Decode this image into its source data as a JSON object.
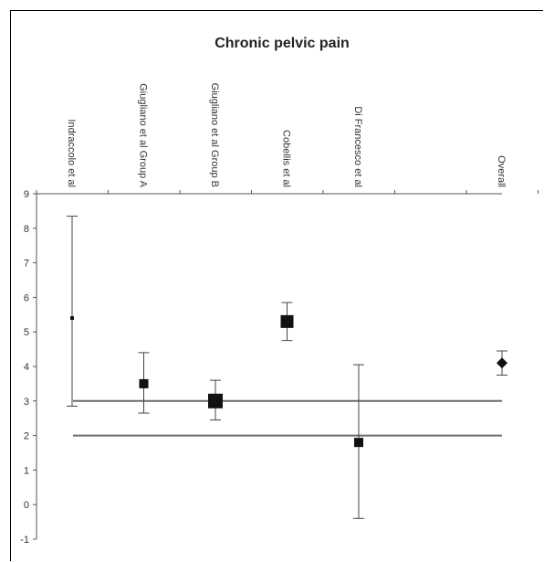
{
  "chart_data": {
    "type": "scatter",
    "title": "Chronic pelvic pain",
    "xlabel": "",
    "ylabel": "",
    "ylim": [
      -1,
      9
    ],
    "yticks": [
      -1,
      0,
      1,
      2,
      3,
      4,
      5,
      6,
      7,
      8,
      9
    ],
    "categories": [
      "Indraccolo et al",
      "Giugliano et al Group A",
      "Giugliano et al Group B",
      "Cobellis et al",
      "Di Francesco et al",
      "Overall"
    ],
    "points": [
      {
        "category": "Indraccolo et al",
        "value": 5.4,
        "lower": 2.85,
        "upper": 8.35,
        "marker": "square",
        "weight": 1
      },
      {
        "category": "Giugliano et al Group A",
        "value": 3.5,
        "lower": 2.65,
        "upper": 4.4,
        "marker": "square",
        "weight": 3
      },
      {
        "category": "Giugliano et al Group B",
        "value": 3.0,
        "lower": 2.45,
        "upper": 3.6,
        "marker": "square",
        "weight": 5
      },
      {
        "category": "Cobellis et al",
        "value": 5.3,
        "lower": 4.75,
        "upper": 5.85,
        "marker": "square",
        "weight": 4
      },
      {
        "category": "Di Francesco et al",
        "value": 1.8,
        "lower": -0.4,
        "upper": 4.05,
        "marker": "square",
        "weight": 2
      },
      {
        "category": "Overall",
        "value": 4.1,
        "lower": 3.75,
        "upper": 4.45,
        "marker": "diamond",
        "weight": 3
      }
    ],
    "reference_lines": [
      3,
      2
    ],
    "grid": false,
    "legend": "none",
    "colors": {
      "marker": "#111111",
      "line": "#6b6b6b",
      "axis": "#555555",
      "errorbar": "#444444"
    }
  }
}
